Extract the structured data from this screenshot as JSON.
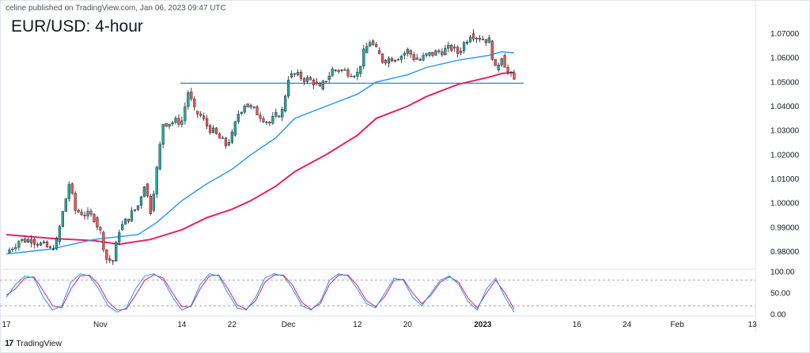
{
  "header": {
    "published": "celine published on TradingView.com, Jan 06, 2023 09:47 UTC"
  },
  "footer": {
    "logo": "17",
    "brand": "TradingView"
  },
  "colors": {
    "bull": "#26a69a",
    "bear": "#ef5350",
    "ma_fast": "#2196f3",
    "ma_slow": "#e91e63",
    "stoch_k": "#2196f3",
    "stoch_d": "#e91e63",
    "level": "#1e88e5"
  },
  "chart_data": {
    "type": "candlestick",
    "title": "EUR/USD: 4-hour",
    "price_axis": {
      "range": [
        0.973,
        1.078
      ],
      "ticks": [
        "1.07000",
        "1.06000",
        "1.05000",
        "1.04000",
        "1.03000",
        "1.02000",
        "1.01000",
        "1.00000",
        "0.99000",
        "0.98000"
      ]
    },
    "time_axis": {
      "ticks": [
        "17",
        "Nov",
        "14",
        "22",
        "Dec",
        "12",
        "20",
        "2023",
        "16",
        "24",
        "Feb",
        "13"
      ]
    },
    "horizontal_level": {
      "value": 1.0495,
      "from": "Nov 14",
      "to": "Jan 06"
    },
    "series": [
      {
        "name": "",
        "kind": "price",
        "points": [
          [
            "Oct 17",
            0.9795
          ],
          [
            "Oct 19",
            0.9845
          ],
          [
            "Oct 21",
            0.985
          ],
          [
            "Oct 24",
            0.981
          ],
          [
            "Oct 25",
            0.984
          ],
          [
            "Oct 27",
            1.008
          ],
          [
            "Oct 28",
            0.997
          ],
          [
            "Oct 31",
            0.994
          ],
          [
            "Nov 01",
            0.988
          ],
          [
            "Nov 02",
            0.977
          ],
          [
            "Nov 03",
            0.976
          ],
          [
            "Nov 04",
            0.989
          ],
          [
            "Nov 07",
            0.999
          ],
          [
            "Nov 08",
            1.008
          ],
          [
            "Nov 09",
            0.997
          ],
          [
            "Nov 10",
            1.014
          ],
          [
            "Nov 11",
            1.033
          ],
          [
            "Nov 14",
            1.034
          ],
          [
            "Nov 15",
            1.046
          ],
          [
            "Nov 16",
            1.038
          ],
          [
            "Nov 17",
            1.036
          ],
          [
            "Nov 18",
            1.032
          ],
          [
            "Nov 21",
            1.024
          ],
          [
            "Nov 22",
            1.028
          ],
          [
            "Nov 23",
            1.037
          ],
          [
            "Nov 24",
            1.041
          ],
          [
            "Nov 25",
            1.0395
          ],
          [
            "Nov 28",
            1.033
          ],
          [
            "Nov 29",
            1.036
          ],
          [
            "Nov 30",
            1.038
          ],
          [
            "Dec 01",
            1.052
          ],
          [
            "Dec 02",
            1.053
          ],
          [
            "Dec 05",
            1.05
          ],
          [
            "Dec 06",
            1.047
          ],
          [
            "Dec 07",
            1.051
          ],
          [
            "Dec 08",
            1.055
          ],
          [
            "Dec 09",
            1.055
          ],
          [
            "Dec 12",
            1.0535
          ],
          [
            "Dec 13",
            1.062
          ],
          [
            "Dec 14",
            1.067
          ],
          [
            "Dec 15",
            1.063
          ],
          [
            "Dec 16",
            1.059
          ],
          [
            "Dec 19",
            1.061
          ],
          [
            "Dec 20",
            1.063
          ],
          [
            "Dec 21",
            1.06
          ],
          [
            "Dec 22",
            1.059
          ],
          [
            "Dec 23",
            1.061
          ],
          [
            "Dec 27",
            1.064
          ],
          [
            "Dec 28",
            1.062
          ],
          [
            "Dec 29",
            1.066
          ],
          [
            "Dec 30",
            1.07
          ],
          [
            "Jan 02",
            1.067
          ],
          [
            "Jan 03",
            1.055
          ],
          [
            "Jan 04",
            1.061
          ],
          [
            "Jan 05",
            1.054
          ],
          [
            "Jan 06",
            1.0505
          ]
        ]
      },
      {
        "name": "",
        "kind": "moving_average_fast",
        "points": [
          [
            "Oct 17",
            0.979
          ],
          [
            "Oct 24",
            0.981
          ],
          [
            "Oct 31",
            0.985
          ],
          [
            "Nov 07",
            0.987
          ],
          [
            "Nov 10",
            0.992
          ],
          [
            "Nov 14",
            1.001
          ],
          [
            "Nov 18",
            1.008
          ],
          [
            "Nov 22",
            1.014
          ],
          [
            "Nov 25",
            1.02
          ],
          [
            "Nov 29",
            1.027
          ],
          [
            "Dec 02",
            1.035
          ],
          [
            "Dec 07",
            1.04
          ],
          [
            "Dec 12",
            1.045
          ],
          [
            "Dec 15",
            1.05
          ],
          [
            "Dec 20",
            1.053
          ],
          [
            "Dec 23",
            1.056
          ],
          [
            "Dec 28",
            1.059
          ],
          [
            "Jan 02",
            1.061
          ],
          [
            "Jan 04",
            1.0625
          ],
          [
            "Jan 06",
            1.062
          ]
        ]
      },
      {
        "name": "",
        "kind": "moving_average_slow",
        "points": [
          [
            "Oct 17",
            0.987
          ],
          [
            "Oct 24",
            0.9855
          ],
          [
            "Oct 31",
            0.9845
          ],
          [
            "Nov 04",
            0.983
          ],
          [
            "Nov 09",
            0.985
          ],
          [
            "Nov 14",
            0.989
          ],
          [
            "Nov 18",
            0.994
          ],
          [
            "Nov 22",
            0.9975
          ],
          [
            "Nov 25",
            1.001
          ],
          [
            "Nov 29",
            1.007
          ],
          [
            "Dec 02",
            1.013
          ],
          [
            "Dec 07",
            1.02
          ],
          [
            "Dec 12",
            1.028
          ],
          [
            "Dec 15",
            1.035
          ],
          [
            "Dec 20",
            1.04
          ],
          [
            "Dec 23",
            1.044
          ],
          [
            "Dec 28",
            1.049
          ],
          [
            "Jan 02",
            1.052
          ],
          [
            "Jan 04",
            1.0535
          ],
          [
            "Jan 06",
            1.054
          ]
        ]
      }
    ],
    "oscillator": {
      "type": "stochastic",
      "range": [
        0,
        100
      ],
      "ticks": [
        "100.00",
        "50.00",
        "0.00"
      ],
      "levels": [
        80,
        20
      ],
      "k": [
        40,
        70,
        90,
        85,
        40,
        10,
        20,
        75,
        95,
        90,
        60,
        20,
        5,
        15,
        60,
        90,
        95,
        80,
        40,
        10,
        20,
        70,
        95,
        90,
        50,
        15,
        10,
        40,
        85,
        95,
        90,
        60,
        20,
        10,
        30,
        80,
        95,
        90,
        60,
        25,
        15,
        50,
        85,
        80,
        40,
        20,
        50,
        80,
        90,
        70,
        30,
        10,
        60,
        85,
        40,
        5
      ],
      "d": [
        45,
        60,
        85,
        88,
        55,
        20,
        15,
        60,
        90,
        92,
        70,
        30,
        10,
        12,
        45,
        80,
        93,
        85,
        50,
        18,
        18,
        60,
        90,
        92,
        60,
        22,
        12,
        32,
        75,
        92,
        92,
        68,
        28,
        12,
        25,
        70,
        92,
        92,
        68,
        32,
        18,
        42,
        80,
        82,
        50,
        25,
        45,
        75,
        88,
        75,
        38,
        15,
        50,
        80,
        50,
        12
      ]
    }
  }
}
